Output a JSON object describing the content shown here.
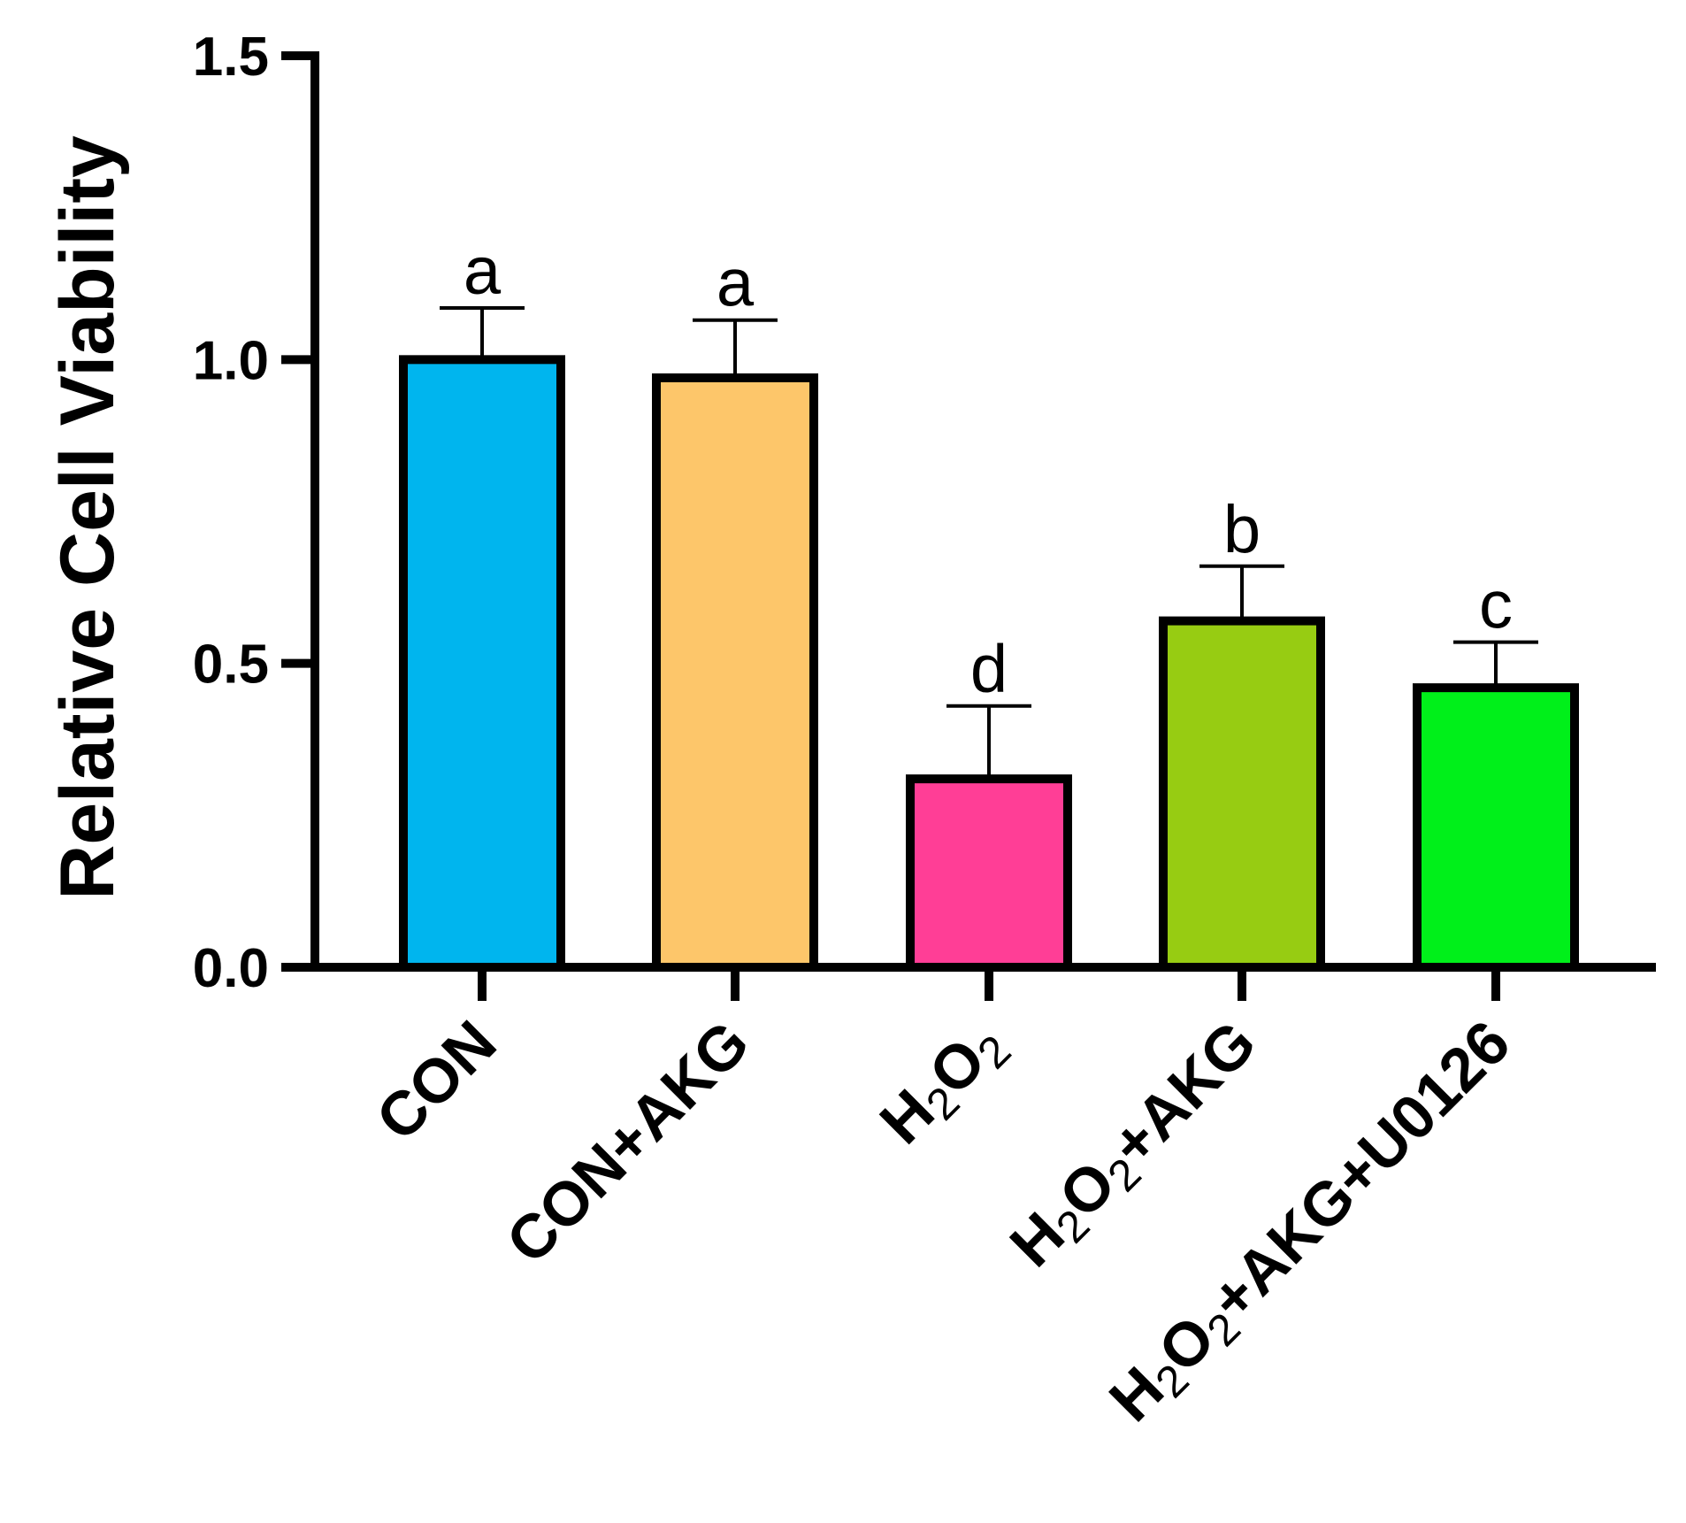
{
  "chart_data": {
    "type": "bar",
    "title": "",
    "xlabel": "",
    "ylabel": "Relative Cell Viability",
    "ylim": [
      0,
      1.5
    ],
    "yticks": [
      "0.0",
      "0.5",
      "1.0",
      "1.5"
    ],
    "grid": false,
    "categories": [
      {
        "main": "CON",
        "parts": [
          {
            "t": "CON",
            "sub": false
          }
        ]
      },
      {
        "main": "CON+AKG",
        "parts": [
          {
            "t": "CON+AKG",
            "sub": false
          }
        ]
      },
      {
        "main": "H2O2",
        "parts": [
          {
            "t": "H",
            "sub": false
          },
          {
            "t": "2",
            "sub": true
          },
          {
            "t": "O",
            "sub": false
          },
          {
            "t": "2",
            "sub": true
          }
        ]
      },
      {
        "main": "H2O2+AKG",
        "parts": [
          {
            "t": "H",
            "sub": false
          },
          {
            "t": "2",
            "sub": true
          },
          {
            "t": "O",
            "sub": false
          },
          {
            "t": "2",
            "sub": true
          },
          {
            "t": "+AKG",
            "sub": false
          }
        ]
      },
      {
        "main": "H2O2+AKG+U0126",
        "parts": [
          {
            "t": "H",
            "sub": false
          },
          {
            "t": "2",
            "sub": true
          },
          {
            "t": "O",
            "sub": false
          },
          {
            "t": "2",
            "sub": true
          },
          {
            "t": "+AKG+U0126",
            "sub": false
          }
        ]
      }
    ],
    "values": [
      1.0,
      0.97,
      0.31,
      0.57,
      0.46
    ],
    "errors": [
      0.085,
      0.095,
      0.12,
      0.09,
      0.075
    ],
    "significance": [
      "a",
      "a",
      "d",
      "b",
      "c"
    ],
    "colors": [
      "#00B5EE",
      "#FDC66A",
      "#FF3E96",
      "#97CC12",
      "#00F01A"
    ]
  }
}
